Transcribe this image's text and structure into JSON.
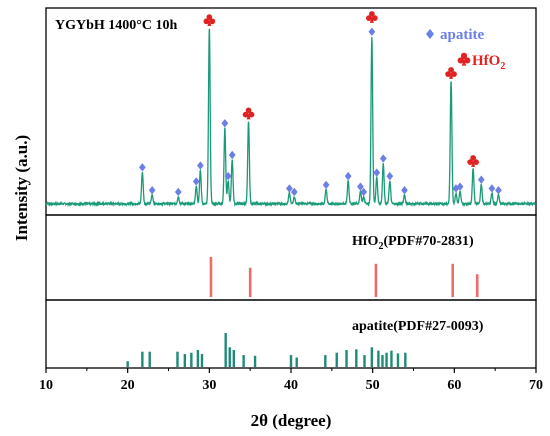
{
  "chart_data": {
    "type": "line",
    "title": "YGYbH 1400°C 10h",
    "xlabel": "2θ (degree)",
    "ylabel": "Intensity (a.u.)",
    "xlim": [
      10,
      70
    ],
    "xticks": [
      "10",
      "20",
      "30",
      "40",
      "50",
      "60",
      "70"
    ],
    "colors": {
      "pattern": "#1a9a78",
      "hfo2": "#f06a6a",
      "apatite": "#1e8a78",
      "diamond": "#6b7fe6",
      "club": "#e02222"
    },
    "legend": {
      "apatite_label": "apatite",
      "hfo2_label": "HfO",
      "hfo2_sub": "2",
      "apatite_icon": "diamond-icon",
      "hfo2_icon": "club-icon"
    },
    "xrd_peaks": {
      "baseline": 0.05,
      "peaks": [
        {
          "x": 21.8,
          "h": 0.18,
          "w": 0.1
        },
        {
          "x": 23.0,
          "h": 0.05,
          "w": 0.1
        },
        {
          "x": 26.2,
          "h": 0.04,
          "w": 0.1
        },
        {
          "x": 28.4,
          "h": 0.1,
          "w": 0.1
        },
        {
          "x": 28.9,
          "h": 0.19,
          "w": 0.1
        },
        {
          "x": 30.0,
          "h": 1.0,
          "w": 0.1
        },
        {
          "x": 31.9,
          "h": 0.43,
          "w": 0.1
        },
        {
          "x": 32.3,
          "h": 0.13,
          "w": 0.1
        },
        {
          "x": 32.8,
          "h": 0.25,
          "w": 0.1
        },
        {
          "x": 34.8,
          "h": 0.47,
          "w": 0.1
        },
        {
          "x": 39.8,
          "h": 0.06,
          "w": 0.1
        },
        {
          "x": 40.4,
          "h": 0.04,
          "w": 0.1
        },
        {
          "x": 44.3,
          "h": 0.08,
          "w": 0.1
        },
        {
          "x": 47.0,
          "h": 0.13,
          "w": 0.1
        },
        {
          "x": 48.5,
          "h": 0.07,
          "w": 0.1
        },
        {
          "x": 48.9,
          "h": 0.04,
          "w": 0.1
        },
        {
          "x": 49.9,
          "h": 0.95,
          "w": 0.1
        },
        {
          "x": 50.5,
          "h": 0.15,
          "w": 0.1
        },
        {
          "x": 51.3,
          "h": 0.23,
          "w": 0.1
        },
        {
          "x": 52.1,
          "h": 0.13,
          "w": 0.1
        },
        {
          "x": 53.9,
          "h": 0.05,
          "w": 0.1
        },
        {
          "x": 59.6,
          "h": 0.7,
          "w": 0.1
        },
        {
          "x": 60.2,
          "h": 0.06,
          "w": 0.1
        },
        {
          "x": 60.7,
          "h": 0.07,
          "w": 0.1
        },
        {
          "x": 62.3,
          "h": 0.2,
          "w": 0.1
        },
        {
          "x": 63.3,
          "h": 0.11,
          "w": 0.1
        },
        {
          "x": 64.6,
          "h": 0.06,
          "w": 0.1
        },
        {
          "x": 65.4,
          "h": 0.05,
          "w": 0.1
        }
      ]
    },
    "apatite_markers": [
      21.8,
      23.0,
      26.2,
      28.4,
      28.9,
      31.9,
      32.3,
      32.8,
      39.8,
      40.4,
      44.3,
      47.0,
      48.5,
      48.9,
      49.9,
      50.5,
      51.3,
      52.1,
      53.9,
      60.2,
      60.7,
      63.3,
      64.6,
      65.4
    ],
    "hfo2_markers": [
      30.0,
      34.8,
      49.9,
      59.6,
      62.3
    ],
    "reference_hfo2": {
      "label": "HfO",
      "label_sub": "2",
      "label_rest": "(PDF#70-2831)",
      "lines": [
        {
          "x": 30.2,
          "h": 1.0
        },
        {
          "x": 35.0,
          "h": 0.73
        },
        {
          "x": 50.4,
          "h": 0.83
        },
        {
          "x": 59.8,
          "h": 0.83
        },
        {
          "x": 62.8,
          "h": 0.57
        }
      ]
    },
    "reference_apatite": {
      "label": "apatite(PDF#27-0093)",
      "lines": [
        {
          "x": 20.0,
          "h": 0.17
        },
        {
          "x": 21.8,
          "h": 0.45
        },
        {
          "x": 22.7,
          "h": 0.45
        },
        {
          "x": 26.1,
          "h": 0.45
        },
        {
          "x": 27.0,
          "h": 0.38
        },
        {
          "x": 27.8,
          "h": 0.42
        },
        {
          "x": 28.6,
          "h": 0.5
        },
        {
          "x": 29.1,
          "h": 0.38
        },
        {
          "x": 32.0,
          "h": 1.0
        },
        {
          "x": 32.5,
          "h": 0.58
        },
        {
          "x": 33.0,
          "h": 0.5
        },
        {
          "x": 34.2,
          "h": 0.35
        },
        {
          "x": 35.6,
          "h": 0.33
        },
        {
          "x": 40.0,
          "h": 0.35
        },
        {
          "x": 40.7,
          "h": 0.28
        },
        {
          "x": 44.2,
          "h": 0.35
        },
        {
          "x": 45.6,
          "h": 0.42
        },
        {
          "x": 46.8,
          "h": 0.5
        },
        {
          "x": 48.0,
          "h": 0.52
        },
        {
          "x": 49.0,
          "h": 0.35
        },
        {
          "x": 49.9,
          "h": 0.58
        },
        {
          "x": 50.7,
          "h": 0.48
        },
        {
          "x": 51.2,
          "h": 0.35
        },
        {
          "x": 51.7,
          "h": 0.42
        },
        {
          "x": 52.3,
          "h": 0.48
        },
        {
          "x": 53.1,
          "h": 0.4
        },
        {
          "x": 54.0,
          "h": 0.42
        }
      ]
    }
  }
}
